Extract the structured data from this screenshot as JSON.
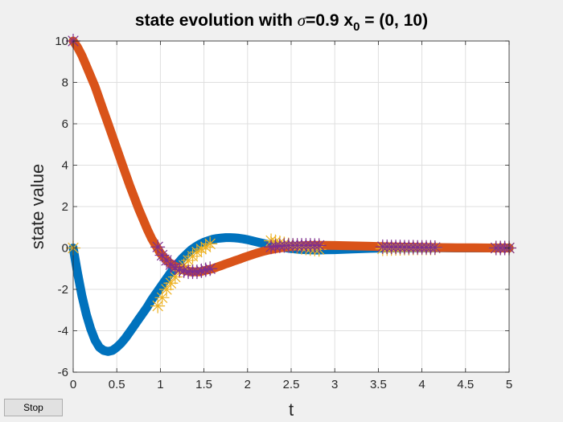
{
  "chart_data": {
    "type": "line",
    "title": {
      "prefix": "state evolution with ",
      "symbol": "σ",
      "middle": "=0.9 x",
      "subscript": "0",
      "suffix": " = (0, 10)"
    },
    "xlabel": "t",
    "ylabel": "state value",
    "xlim": [
      0,
      5
    ],
    "ylim": [
      -6,
      10
    ],
    "xticks": [
      "0",
      "0.5",
      "1",
      "1.5",
      "2",
      "2.5",
      "3",
      "3.5",
      "4",
      "4.5",
      "5"
    ],
    "yticks": [
      "-6",
      "-4",
      "-2",
      "0",
      "2",
      "4",
      "6",
      "8",
      "10"
    ],
    "grid": true,
    "series": [
      {
        "color": "#0072bd",
        "marker_color": "#edb120",
        "x": [
          0,
          0.05,
          0.1,
          0.15,
          0.2,
          0.25,
          0.3,
          0.35,
          0.4,
          0.45,
          0.5,
          0.55,
          0.6,
          0.65,
          0.7,
          0.75,
          0.8,
          0.85,
          0.9,
          0.95,
          1.0,
          1.05,
          1.1,
          1.15,
          1.2,
          1.25,
          1.3,
          1.35,
          1.4,
          1.45,
          1.5,
          1.55,
          1.6,
          1.65,
          1.7,
          1.75,
          1.8,
          1.85,
          1.9,
          1.95,
          2.0,
          2.05,
          2.1,
          2.15,
          2.2,
          2.25,
          2.3,
          2.35,
          2.4,
          2.5,
          2.6,
          2.7,
          2.8,
          2.9,
          3.0,
          3.2,
          3.4,
          3.6,
          3.8,
          4.0,
          4.2,
          4.4,
          4.6,
          4.8,
          5.0
        ],
        "y": [
          0,
          -1.2,
          -2.3,
          -3.2,
          -3.9,
          -4.45,
          -4.8,
          -4.95,
          -5.0,
          -4.95,
          -4.8,
          -4.6,
          -4.35,
          -4.05,
          -3.75,
          -3.45,
          -3.15,
          -2.85,
          -2.5,
          -2.2,
          -1.9,
          -1.6,
          -1.3,
          -1.0,
          -0.75,
          -0.5,
          -0.3,
          -0.1,
          0.05,
          0.18,
          0.28,
          0.35,
          0.42,
          0.46,
          0.48,
          0.5,
          0.5,
          0.49,
          0.47,
          0.44,
          0.4,
          0.35,
          0.3,
          0.25,
          0.2,
          0.15,
          0.1,
          0.06,
          0.03,
          -0.03,
          -0.07,
          -0.09,
          -0.1,
          -0.09,
          -0.08,
          -0.05,
          -0.02,
          0.0,
          0.01,
          0.01,
          0.01,
          0.0,
          0.0,
          0.0,
          0.0
        ],
        "markers_x": [
          0,
          0.97,
          1.02,
          1.07,
          1.12,
          1.17,
          1.22,
          1.27,
          1.32,
          1.37,
          1.42,
          1.47,
          1.52,
          1.57,
          2.27,
          2.32,
          2.37,
          2.42,
          2.47,
          2.52,
          2.57,
          2.62,
          2.67,
          2.72,
          2.77,
          2.82,
          3.55,
          3.6,
          3.65,
          3.7,
          3.75,
          3.8,
          3.85,
          3.9,
          3.95,
          4.0,
          4.05,
          4.1,
          4.15,
          4.85,
          4.9,
          4.95,
          5.0
        ],
        "markers_y": [
          0,
          -2.8,
          -2.4,
          -2.0,
          -1.7,
          -1.4,
          -1.1,
          -0.85,
          -0.6,
          -0.4,
          -0.2,
          -0.05,
          0.05,
          0.2,
          0.35,
          0.3,
          0.25,
          0.2,
          0.15,
          0.1,
          0.06,
          0.03,
          0.0,
          -0.03,
          -0.05,
          -0.07,
          -0.04,
          -0.03,
          -0.03,
          -0.02,
          -0.02,
          -0.01,
          -0.01,
          0.0,
          0.0,
          0.0,
          0.0,
          0.0,
          0.0,
          0.0,
          0.0,
          0.0,
          0.0
        ]
      },
      {
        "color": "#d95319",
        "marker_color": "#7e2f8e",
        "x": [
          0,
          0.05,
          0.1,
          0.15,
          0.2,
          0.25,
          0.3,
          0.35,
          0.4,
          0.45,
          0.5,
          0.55,
          0.6,
          0.65,
          0.7,
          0.75,
          0.8,
          0.85,
          0.9,
          0.95,
          1.0,
          1.05,
          1.1,
          1.15,
          1.2,
          1.25,
          1.3,
          1.35,
          1.4,
          1.45,
          1.5,
          1.55,
          1.6,
          1.65,
          1.7,
          1.75,
          1.8,
          1.85,
          1.9,
          1.95,
          2.0,
          2.05,
          2.1,
          2.15,
          2.2,
          2.25,
          2.3,
          2.35,
          2.4,
          2.5,
          2.6,
          2.7,
          2.8,
          2.9,
          3.0,
          3.2,
          3.4,
          3.6,
          3.8,
          4.0,
          4.2,
          4.4,
          4.6,
          4.8,
          5.0
        ],
        "y": [
          10,
          9.7,
          9.3,
          8.8,
          8.3,
          7.8,
          7.2,
          6.6,
          6.0,
          5.4,
          4.8,
          4.2,
          3.6,
          3.0,
          2.45,
          1.9,
          1.4,
          0.9,
          0.45,
          0.1,
          -0.25,
          -0.5,
          -0.7,
          -0.85,
          -0.95,
          -1.05,
          -1.1,
          -1.15,
          -1.15,
          -1.15,
          -1.1,
          -1.05,
          -1.0,
          -0.92,
          -0.85,
          -0.77,
          -0.7,
          -0.62,
          -0.55,
          -0.47,
          -0.4,
          -0.33,
          -0.26,
          -0.2,
          -0.14,
          -0.09,
          -0.05,
          -0.01,
          0.02,
          0.07,
          0.1,
          0.12,
          0.13,
          0.13,
          0.12,
          0.1,
          0.08,
          0.06,
          0.04,
          0.03,
          0.02,
          0.01,
          0.01,
          0.0,
          0.0
        ],
        "markers_x": [
          0,
          0.97,
          1.02,
          1.07,
          1.12,
          1.17,
          1.22,
          1.27,
          1.32,
          1.37,
          1.42,
          1.47,
          1.52,
          1.57,
          2.27,
          2.32,
          2.37,
          2.42,
          2.47,
          2.52,
          2.57,
          2.62,
          2.67,
          2.72,
          2.77,
          2.82,
          3.55,
          3.6,
          3.65,
          3.7,
          3.75,
          3.8,
          3.85,
          3.9,
          3.95,
          4.0,
          4.05,
          4.1,
          4.15,
          4.85,
          4.9,
          4.95,
          5.0
        ],
        "markers_y": [
          10,
          0.05,
          -0.35,
          -0.6,
          -0.8,
          -0.95,
          -1.05,
          -1.1,
          -1.15,
          -1.15,
          -1.15,
          -1.1,
          -1.05,
          -1.0,
          0.05,
          0.08,
          0.1,
          0.12,
          0.12,
          0.13,
          0.13,
          0.13,
          0.13,
          0.13,
          0.12,
          0.12,
          0.06,
          0.06,
          0.05,
          0.05,
          0.05,
          0.04,
          0.04,
          0.04,
          0.03,
          0.03,
          0.03,
          0.03,
          0.02,
          0.0,
          0.0,
          0.0,
          0.0
        ]
      }
    ]
  },
  "stop_button": {
    "label": "Stop"
  }
}
